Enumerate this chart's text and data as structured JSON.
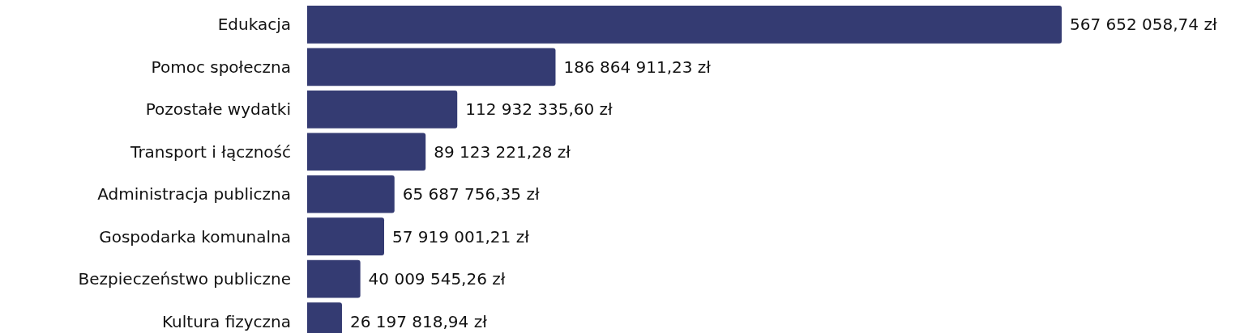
{
  "chart_data": {
    "type": "bar",
    "orientation": "horizontal",
    "categories": [
      "Edukacja",
      "Pomoc społeczna",
      "Pozostałe wydatki",
      "Transport i łączność",
      "Administracja publiczna",
      "Gospodarka komunalna",
      "Bezpieczeństwo publiczne",
      "Kultura fizyczna"
    ],
    "values": [
      567652058.74,
      186864911.23,
      112932335.6,
      89123221.28,
      65687756.35,
      57919001.21,
      40009545.26,
      26197818.94
    ],
    "value_labels": [
      "567 652 058,74 zł",
      "186 864 911,23 zł",
      "112 932 335,60 zł",
      "89 123 221,28 zł",
      "65 687 756,35 zł",
      "57 919 001,21 zł",
      "40 009 545,26 zł",
      "26 197 818,94 zł"
    ],
    "color": "#343b72"
  }
}
